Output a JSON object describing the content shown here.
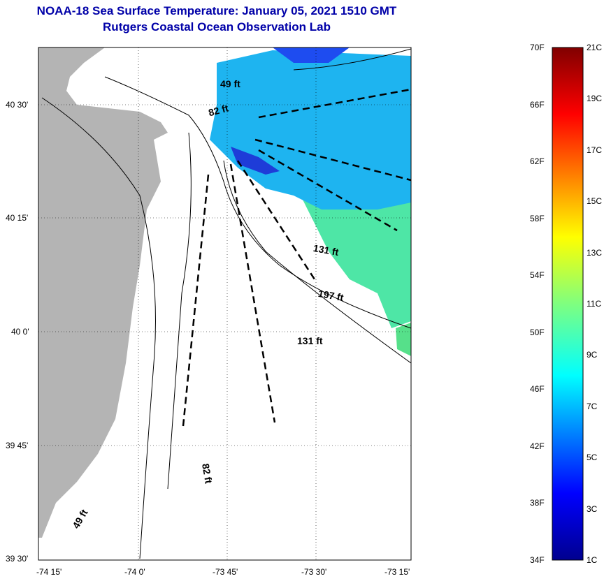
{
  "title": "NOAA-18 Sea Surface Temperature:  January 05, 2021 1510 GMT",
  "subtitle": "Rutgers Coastal Ocean Observation Lab",
  "map": {
    "lat_labels": [
      "40 30'",
      "40 15'",
      "40 0'",
      "39 45'",
      "39 30'"
    ],
    "lon_labels": [
      "-74 15'",
      "-74 0'",
      "-73 45'",
      "-73 30'",
      "-73 15'"
    ],
    "depth_labels": [
      "49 ft",
      "82 ft",
      "131 ft",
      "197 ft",
      "131 ft",
      "82 ft",
      "49 ft"
    ],
    "colors": {
      "land": "#b4b4b4",
      "cold": "#1e3cff",
      "mid": "#18b4ff",
      "warm": "#5ae68c"
    }
  },
  "colorbar": {
    "fahrenheit": [
      "70F",
      "66F",
      "62F",
      "58F",
      "54F",
      "50F",
      "46F",
      "42F",
      "38F",
      "34F"
    ],
    "celsius": [
      "21C",
      "19C",
      "17C",
      "15C",
      "13C",
      "11C",
      "9C",
      "7C",
      "5C",
      "3C",
      "1C"
    ]
  }
}
